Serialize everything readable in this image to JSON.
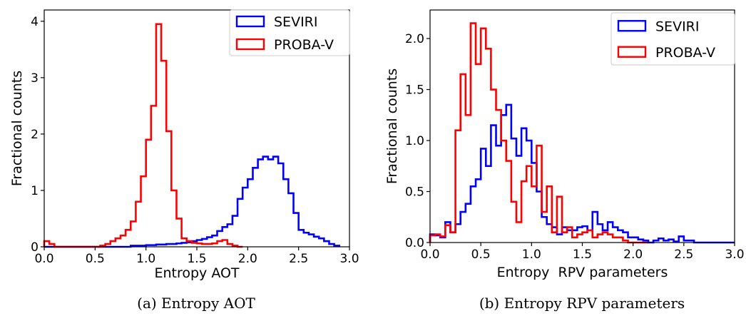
{
  "chart_data": [
    {
      "type": "histogram",
      "caption": "(a) Entropy AOT",
      "xlabel": "Entropy AOT",
      "ylabel": "Fractional counts",
      "xlim": [
        0,
        3.0
      ],
      "ylim": [
        0,
        4.2
      ],
      "xticks": [
        "0.0",
        "0.5",
        "1.0",
        "1.5",
        "2.0",
        "2.5",
        "3.0"
      ],
      "yticks": [
        "0",
        "1",
        "2",
        "3",
        "4"
      ],
      "legend_position": "top-right",
      "bin_width": 0.05,
      "series": [
        {
          "name": "SEVIRI",
          "color": "#0000ff",
          "start": 0.0,
          "values": [
            0.0,
            0.0,
            0.0,
            0.0,
            0.0,
            0.0,
            0.0,
            0.0,
            0.0,
            0.0,
            0.0,
            0.0,
            0.0,
            0.0,
            0.0,
            0.0,
            0.0,
            0.02,
            0.02,
            0.02,
            0.03,
            0.03,
            0.04,
            0.04,
            0.05,
            0.05,
            0.06,
            0.07,
            0.08,
            0.1,
            0.12,
            0.14,
            0.17,
            0.2,
            0.28,
            0.35,
            0.4,
            0.55,
            0.85,
            1.05,
            1.2,
            1.4,
            1.55,
            1.6,
            1.55,
            1.6,
            1.48,
            1.2,
            0.95,
            0.6,
            0.3,
            0.25,
            0.22,
            0.18,
            0.15,
            0.1,
            0.05,
            0.02
          ]
        },
        {
          "name": "PROBA-V",
          "color": "#ff0000",
          "start": 0.0,
          "values": [
            0.1,
            0.05,
            0.0,
            0.0,
            0.0,
            0.0,
            0.0,
            0.0,
            0.0,
            0.0,
            0.0,
            0.02,
            0.05,
            0.1,
            0.15,
            0.2,
            0.3,
            0.45,
            0.8,
            1.25,
            1.9,
            2.5,
            3.95,
            3.3,
            2.05,
            1.0,
            0.5,
            0.15,
            0.1,
            0.07,
            0.06,
            0.05,
            0.05,
            0.06,
            0.1,
            0.12,
            0.05,
            0.02,
            0.0
          ]
        }
      ]
    },
    {
      "type": "histogram",
      "caption": "(b) Entropy RPV parameters",
      "xlabel": "Entropy  RPV parameters",
      "ylabel": "Fractional counts",
      "xlim": [
        0,
        3.0
      ],
      "ylim": [
        0,
        2.28
      ],
      "xticks": [
        "0.0",
        "0.5",
        "1.0",
        "1.5",
        "2.0",
        "2.5",
        "3.0"
      ],
      "yticks": [
        "0.0",
        "0.5",
        "1.0",
        "1.5",
        "2.0"
      ],
      "legend_position": "top-right",
      "bin_width": 0.05,
      "series": [
        {
          "name": "SEVIRI",
          "color": "#0000ff",
          "start": 0.0,
          "values": [
            0.08,
            0.07,
            0.05,
            0.2,
            0.1,
            0.18,
            0.3,
            0.38,
            0.55,
            0.62,
            0.92,
            0.75,
            1.15,
            0.95,
            1.25,
            1.35,
            1.02,
            0.85,
            1.12,
            1.0,
            0.78,
            0.5,
            0.25,
            0.18,
            0.15,
            0.08,
            0.15,
            0.12,
            0.12,
            0.15,
            0.16,
            0.12,
            0.3,
            0.18,
            0.12,
            0.2,
            0.15,
            0.12,
            0.1,
            0.05,
            0.05,
            0.03,
            0.02,
            0.0,
            0.02,
            0.04,
            0.02,
            0.03,
            0.01,
            0.06,
            0.02,
            0.02,
            0.0,
            0.0,
            0.0,
            0.0,
            0.0,
            0.0,
            0.0,
            0.0
          ]
        },
        {
          "name": "PROBA-V",
          "color": "#ff0000",
          "start": 0.0,
          "values": [
            0.07,
            0.08,
            0.06,
            0.17,
            0.1,
            1.1,
            1.65,
            1.25,
            2.15,
            1.75,
            2.1,
            1.9,
            1.5,
            1.3,
            1.0,
            0.8,
            0.4,
            0.2,
            0.6,
            0.75,
            0.55,
            0.95,
            0.3,
            0.55,
            0.1,
            0.45,
            0.1,
            0.15,
            0.05,
            0.08,
            0.1,
            0.12,
            0.05,
            0.08,
            0.1,
            0.08,
            0.05,
            0.05,
            0.02,
            0.0,
            0.0,
            0.0,
            0.0
          ]
        }
      ]
    }
  ]
}
